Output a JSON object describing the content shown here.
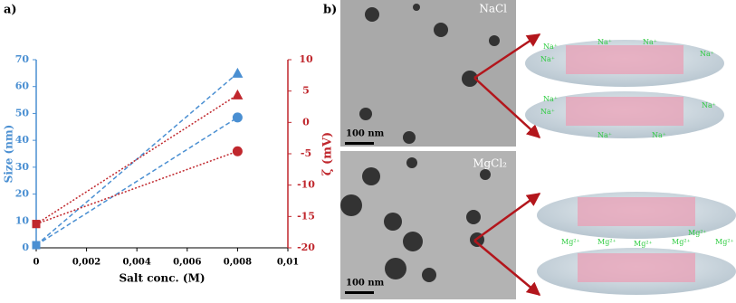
{
  "chart_data": {
    "type": "line",
    "panel_label": "a)",
    "xlabel": "Salt conc. (M)",
    "ylabel": "Size (nm)",
    "y2label": "ζ (mV)",
    "xlim": [
      0,
      0.01
    ],
    "xticks": [
      0,
      {
        "value": 0.002,
        "label": "0,002"
      },
      {
        "value": 0.004,
        "label": "0,004"
      },
      {
        "value": 0.006,
        "label": "0,006"
      },
      {
        "value": 0.008,
        "label": "0,008"
      },
      {
        "value": 0.01,
        "label": "0,01"
      }
    ],
    "ylim": [
      0,
      70
    ],
    "yticks": [
      0,
      10,
      20,
      30,
      40,
      50,
      60,
      70
    ],
    "y1color": "#4a8fd2",
    "y2lim": [
      -20,
      10
    ],
    "y2ticks": [
      -20,
      -15,
      -10,
      -5,
      0,
      5,
      10
    ],
    "y2color": "#c0272d",
    "series": [
      {
        "color": "#4a8fd2",
        "dash": "dashed",
        "markers": [
          "square",
          "triangle"
        ],
        "x": [
          0,
          0.008
        ],
        "values": [
          1,
          65
        ]
      },
      {
        "color": "#4a8fd2",
        "dash": "dashed",
        "markers": [
          "square",
          "circle"
        ],
        "x": [
          0,
          0.008
        ],
        "values": [
          1,
          48.5
        ]
      },
      {
        "color": "#c0272d",
        "dash": "dotted",
        "axis": "y2",
        "markers": [
          "square",
          "triangle"
        ],
        "x": [
          0,
          0.008
        ],
        "values": [
          -16.2,
          4.4
        ]
      },
      {
        "color": "#c0272d",
        "dash": "dotted",
        "axis": "y2",
        "markers": [
          "square",
          "circle"
        ],
        "x": [
          0,
          0.008
        ],
        "values": [
          -16.2,
          -4.6
        ]
      }
    ]
  },
  "images": {
    "panel_label": "b)",
    "top": {
      "label": "NaCl",
      "scale": "100 nm"
    },
    "bottom": {
      "label": "MgCl₂",
      "scale": "100 nm"
    }
  },
  "schematic": {
    "na_labels": [
      "Na⁺",
      "Na⁺",
      "Na⁺",
      "Na⁺",
      "Na⁺",
      "Na⁺",
      "Na⁺",
      "Na⁺",
      "Na⁺",
      "Na⁺"
    ],
    "mg_labels": [
      "Mg²⁺",
      "Mg²⁺",
      "Mg²⁺",
      "Mg²⁺",
      "Mg²⁺",
      "Mg²⁺"
    ]
  }
}
